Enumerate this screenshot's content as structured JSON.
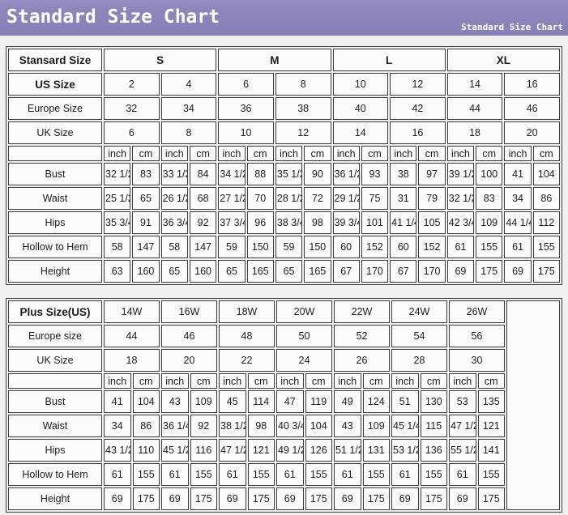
{
  "header": {
    "title": "Standard Size Chart",
    "subtitle": "Standard Size Chart"
  },
  "colors": {
    "header_bar": "#8b87bb",
    "header_text": "#ffffff",
    "table_border": "#3d3d3d",
    "cell_background": "#fcfbfc",
    "page_background": "#f2f0f1"
  },
  "standard_table": {
    "corner_label": "Stansard Size",
    "size_groups": [
      "S",
      "M",
      "L",
      "XL"
    ],
    "rows_top": [
      {
        "label": "US Size",
        "bold": true,
        "values": [
          "2",
          "4",
          "6",
          "8",
          "10",
          "12",
          "14",
          "16"
        ]
      },
      {
        "label": "Europe Size",
        "bold": false,
        "values": [
          "32",
          "34",
          "36",
          "38",
          "40",
          "42",
          "44",
          "46"
        ]
      },
      {
        "label": "UK Size",
        "bold": false,
        "values": [
          "6",
          "8",
          "10",
          "12",
          "14",
          "16",
          "18",
          "20"
        ]
      }
    ],
    "unit_headers": [
      "inch",
      "cm"
    ],
    "measure_rows": [
      {
        "label": "Bust",
        "values": [
          "32 1/2",
          "83",
          "33 1/2",
          "84",
          "34 1/2",
          "88",
          "35 1/2",
          "90",
          "36 1/2",
          "93",
          "38",
          "97",
          "39 1/2",
          "100",
          "41",
          "104"
        ]
      },
      {
        "label": "Waist",
        "values": [
          "25 1/2",
          "65",
          "26 1/2",
          "68",
          "27 1/2",
          "70",
          "28 1/2",
          "72",
          "29 1/2",
          "75",
          "31",
          "79",
          "32 1/2",
          "83",
          "34",
          "86"
        ]
      },
      {
        "label": "Hips",
        "values": [
          "35 3/4",
          "91",
          "36 3/4",
          "92",
          "37 3/4",
          "96",
          "38 3/4",
          "98",
          "39 3/4",
          "101",
          "41 1/4",
          "105",
          "42 3/4",
          "109",
          "44 1/4",
          "112"
        ]
      },
      {
        "label": "Hollow to Hem",
        "values": [
          "58",
          "147",
          "58",
          "147",
          "59",
          "150",
          "59",
          "150",
          "60",
          "152",
          "60",
          "152",
          "61",
          "155",
          "61",
          "155"
        ]
      },
      {
        "label": "Height",
        "values": [
          "63",
          "160",
          "65",
          "160",
          "65",
          "165",
          "65",
          "165",
          "67",
          "170",
          "67",
          "170",
          "69",
          "175",
          "69",
          "175"
        ]
      }
    ]
  },
  "plus_table": {
    "corner_label": "Plus Size(US)",
    "size_groups": [
      "14W",
      "16W",
      "18W",
      "20W",
      "22W",
      "24W",
      "26W"
    ],
    "rows_top": [
      {
        "label": "Europe size",
        "bold": false,
        "values": [
          "44",
          "46",
          "48",
          "50",
          "52",
          "54",
          "56"
        ]
      },
      {
        "label": "UK Size",
        "bold": false,
        "values": [
          "18",
          "20",
          "22",
          "24",
          "26",
          "28",
          "30"
        ]
      }
    ],
    "unit_headers": [
      "inch",
      "cm"
    ],
    "measure_rows": [
      {
        "label": "Bust",
        "values": [
          "41",
          "104",
          "43",
          "109",
          "45",
          "114",
          "47",
          "119",
          "49",
          "124",
          "51",
          "130",
          "53",
          "135"
        ]
      },
      {
        "label": "Waist",
        "values": [
          "34",
          "86",
          "36 1/4",
          "92",
          "38 1/2",
          "98",
          "40 3/4",
          "104",
          "43",
          "109",
          "45 1/4",
          "115",
          "47 1/2",
          "121"
        ]
      },
      {
        "label": "Hips",
        "values": [
          "43 1/2",
          "110",
          "45 1/2",
          "116",
          "47 1/2",
          "121",
          "49 1/2",
          "126",
          "51 1/2",
          "131",
          "53 1/2",
          "136",
          "55 1/2",
          "141"
        ]
      },
      {
        "label": "Hollow to Hem",
        "values": [
          "61",
          "155",
          "61",
          "155",
          "61",
          "155",
          "61",
          "155",
          "61",
          "155",
          "61",
          "155",
          "61",
          "155"
        ]
      },
      {
        "label": "Height",
        "values": [
          "69",
          "175",
          "69",
          "175",
          "69",
          "175",
          "69",
          "175",
          "69",
          "175",
          "69",
          "175",
          "69",
          "175"
        ]
      }
    ]
  }
}
